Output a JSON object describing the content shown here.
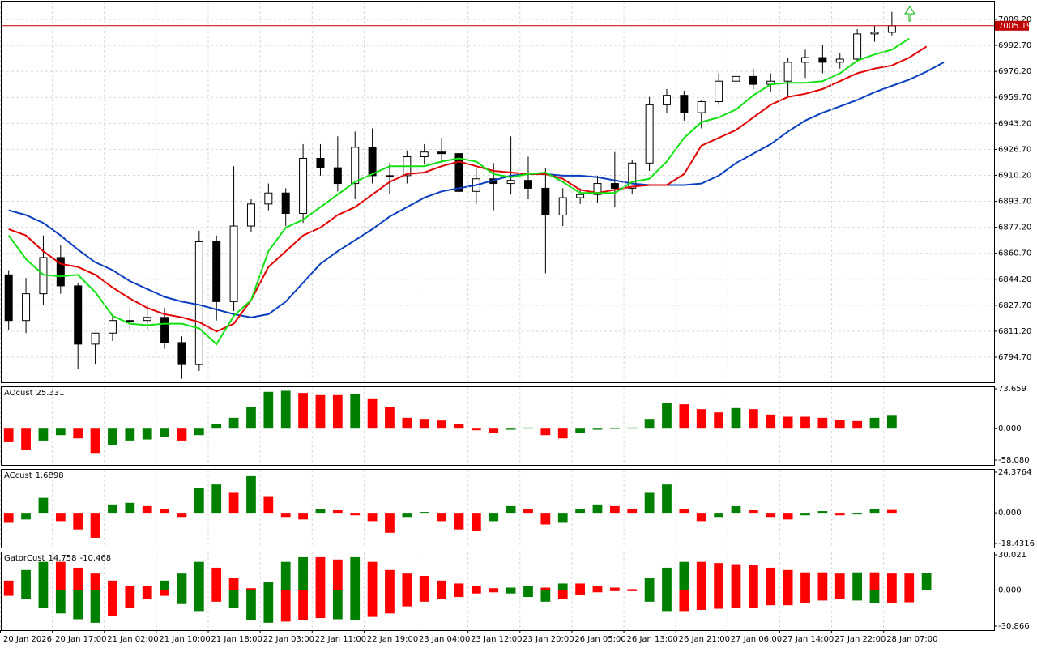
{
  "chart_data": [
    {
      "type": "candlestick",
      "xlim": [
        0,
        57.4
      ],
      "ylim": [
        6778.75,
        7021.55
      ],
      "grid": true,
      "yticks": [
        {
          "value": 7009.2,
          "label": "7009.20"
        },
        {
          "value": 6992.7,
          "label": "6992.70"
        },
        {
          "value": 6976.2,
          "label": "6976.20"
        },
        {
          "value": 6959.7,
          "label": "6959.70"
        },
        {
          "value": 6943.2,
          "label": "6943.20"
        },
        {
          "value": 6926.7,
          "label": "6926.70"
        },
        {
          "value": 6910.2,
          "label": "6910.20"
        },
        {
          "value": 6893.7,
          "label": "6893.70"
        },
        {
          "value": 6877.2,
          "label": "6877.20"
        },
        {
          "value": 6860.7,
          "label": "6860.70"
        },
        {
          "value": 6844.2,
          "label": "6844.20"
        },
        {
          "value": 6827.7,
          "label": "6827.70"
        },
        {
          "value": 6811.2,
          "label": "6811.20"
        },
        {
          "value": 6794.7,
          "label": "6794.70"
        }
      ],
      "up_color": "#ffffff",
      "down_color": "#000000",
      "open": [
        6847,
        6818,
        6835,
        6858,
        6840,
        6803,
        6810,
        6818,
        6818,
        6820,
        6804,
        6790,
        6868,
        6830,
        6878,
        6892,
        6899,
        6886,
        6921,
        6915,
        6905,
        6928,
        6910,
        6910,
        6922,
        6925,
        6924,
        6900,
        6908,
        6905,
        6907,
        6902,
        6885,
        6896,
        6898,
        6905,
        6902,
        6918,
        6955,
        6961,
        6950,
        6957,
        6970,
        6973,
        6968,
        6970,
        6982,
        6985,
        6982,
        6984,
        7000,
        7001
      ],
      "high": [
        6850,
        6845,
        6872,
        6866,
        6842,
        6810,
        6822,
        6826,
        6828,
        6826,
        6808,
        6875,
        6872,
        6916,
        6895,
        6905,
        6902,
        6930,
        6930,
        6935,
        6938,
        6940,
        6918,
        6926,
        6930,
        6934,
        6926,
        6915,
        6918,
        6935,
        6922,
        6915,
        6902,
        6902,
        6910,
        6925,
        6920,
        6960,
        6965,
        6964,
        6958,
        6975,
        6980,
        6978,
        6975,
        6985,
        6990,
        6993,
        6988,
        7003,
        7005,
        7014
      ],
      "low": [
        6812,
        6810,
        6828,
        6835,
        6787,
        6790,
        6805,
        6812,
        6812,
        6800,
        6781,
        6786,
        6818,
        6824,
        6874,
        6888,
        6878,
        6880,
        6910,
        6900,
        6895,
        6905,
        6898,
        6905,
        6917,
        6918,
        6895,
        6892,
        6888,
        6898,
        6895,
        6848,
        6878,
        6892,
        6893,
        6890,
        6898,
        6913,
        6950,
        6945,
        6940,
        6955,
        6966,
        6965,
        6963,
        6960,
        6972,
        6975,
        6978,
        6982,
        6995,
        6999
      ],
      "close": [
        6818,
        6835,
        6858,
        6840,
        6803,
        6810,
        6818,
        6818,
        6820,
        6804,
        6790,
        6868,
        6830,
        6878,
        6892,
        6899,
        6886,
        6921,
        6915,
        6905,
        6928,
        6910,
        6910,
        6922,
        6925,
        6924,
        6900,
        6908,
        6905,
        6907,
        6902,
        6885,
        6896,
        6898,
        6905,
        6902,
        6918,
        6955,
        6961,
        6950,
        6957,
        6970,
        6973,
        6968,
        6970,
        6982,
        6985,
        6982,
        6984,
        7000,
        7001,
        7005.19
      ],
      "lines": [
        {
          "color": "#0a3fbf",
          "values": [
            6888,
            6885,
            6880,
            6872,
            6863,
            6855,
            6850,
            6843,
            6838,
            6833,
            6830,
            6828,
            6825,
            6822,
            6820,
            6822,
            6830,
            6842,
            6854,
            6862,
            6869,
            6876,
            6884,
            6890,
            6896,
            6900,
            6902,
            6904,
            6907,
            6910,
            6911,
            6911,
            6910,
            6910,
            6909,
            6907,
            6905,
            6904,
            6904,
            6904,
            6905,
            6910,
            6918,
            6924,
            6930,
            6938,
            6945,
            6950,
            6954,
            6958,
            6963,
            6967,
            6971,
            6976,
            6982
          ]
        },
        {
          "color": "#e00000",
          "values": [
            6876,
            6872,
            6862,
            6854,
            6852,
            6847,
            6839,
            6832,
            6826,
            6822,
            6820,
            6817,
            6811,
            6816,
            6831,
            6852,
            6862,
            6872,
            6877,
            6885,
            6890,
            6898,
            6906,
            6911,
            6912,
            6916,
            6919,
            6916,
            6913,
            6912,
            6911,
            6911,
            6908,
            6901,
            6899,
            6901,
            6903,
            6904,
            6904,
            6911,
            6929,
            6934,
            6939,
            6947,
            6955,
            6960,
            6962,
            6965,
            6970,
            6975,
            6978,
            6980,
            6985,
            6992,
            null
          ]
        },
        {
          "color": "#10e010",
          "values": [
            6872,
            6857,
            6847,
            6846,
            6847,
            6836,
            6821,
            6816,
            6815,
            6816,
            6816,
            6813,
            6803,
            6821,
            6831,
            6862,
            6877,
            6882,
            6890,
            6898,
            6906,
            6911,
            6916,
            6916,
            6916,
            6919,
            6921,
            6919,
            6911,
            6909,
            6911,
            6912,
            6906,
            6899,
            6899,
            6899,
            6906,
            6908,
            6919,
            6934,
            6944,
            6947,
            6952,
            6961,
            6968,
            6969,
            6969,
            6970,
            6975,
            6983,
            6987,
            6990,
            6997,
            null,
            null
          ]
        }
      ],
      "price_line": {
        "value": 7005.19,
        "color": "#c00000"
      }
    },
    {
      "type": "bar",
      "title": "AOcust",
      "xlim": [
        0,
        57.4
      ],
      "ylim": [
        -67.06,
        79.65
      ],
      "yticks": [
        73.659,
        {
          "value": 0,
          "label": "0.000"
        },
        {
          "value": -58.08,
          "label": "-58.080"
        }
      ],
      "up_color": "#008000",
      "down_color": "#ff0000",
      "values": [
        -25,
        -40,
        -22,
        -12,
        -18,
        -45,
        -30,
        -22,
        -20,
        -15,
        -22,
        -12,
        8,
        20,
        40,
        68,
        70,
        66,
        62,
        62,
        64,
        56,
        40,
        20,
        18,
        15,
        8,
        -3,
        -8,
        -2,
        2,
        -12,
        -18,
        -8,
        -2,
        0,
        2,
        18,
        48,
        45,
        36,
        30,
        38,
        36,
        26,
        22,
        22,
        20,
        16,
        14,
        20,
        25.331
      ]
    },
    {
      "type": "bar",
      "title": "ACcust",
      "xlim": [
        0,
        57.4
      ],
      "ylim": [
        -20.86,
        26.81
      ],
      "yticks": [
        24.3764,
        {
          "value": 0,
          "label": "0.000"
        },
        -18.4316
      ],
      "up_color": "#008000",
      "down_color": "#ff0000",
      "values": [
        -6,
        -4,
        9,
        -5,
        -10,
        -15,
        5,
        6,
        4,
        2.5,
        -2.5,
        15,
        17,
        12,
        22,
        10,
        -2.5,
        -4,
        2.5,
        1.5,
        -1.5,
        -5,
        -12,
        -2.5,
        0.5,
        -5,
        -10,
        -11,
        -5,
        4,
        2.5,
        -7,
        -6,
        2.5,
        5,
        4,
        2.5,
        12,
        17,
        2.5,
        -5,
        -2.5,
        4,
        1.5,
        -2.5,
        -4,
        -1.5,
        1,
        -1.5,
        -1,
        2,
        1.6898
      ]
    },
    {
      "type": "gator",
      "title": "GatorCust",
      "xlim": [
        0,
        57.4
      ],
      "ylim": [
        -34.33,
        33.48
      ],
      "yticks": [
        30.021,
        {
          "value": 0,
          "label": "0.000"
        },
        -30.866
      ],
      "up_color": "#008000",
      "down_color": "#ff0000",
      "upper": [
        8,
        17,
        24,
        24,
        19,
        14,
        8,
        3.5,
        3.5,
        8,
        14,
        24,
        19,
        10,
        1.5,
        7,
        24,
        28,
        28,
        26,
        28,
        24,
        17,
        14,
        12,
        8,
        5.5,
        3.5,
        1.5,
        2,
        3.5,
        2,
        5.5,
        5.5,
        3,
        2,
        0.7,
        10,
        19,
        24,
        24,
        23,
        22,
        21,
        19,
        17,
        15,
        15,
        14,
        15,
        15,
        14,
        14,
        14.758
      ],
      "lower": [
        -5,
        -8,
        -15,
        -20,
        -25,
        -28,
        -22,
        -15,
        -8,
        -5,
        -12,
        -18,
        -10,
        -15,
        -26,
        -28,
        -27,
        -26,
        -24,
        -25,
        -26,
        -23,
        -20,
        -14,
        -10,
        -8,
        -6,
        -3,
        -2,
        -3,
        -6,
        -10,
        -8,
        -4,
        -2,
        -1,
        -1,
        -10,
        -18,
        -18,
        -17,
        -16,
        -15,
        -15,
        -13,
        -13,
        -11,
        -9,
        -8,
        -9,
        -11,
        -11,
        -10.468,
        null
      ],
      "xticks": [
        {
          "value": 0,
          "label": "20 Jan 2026"
        },
        {
          "value": 3,
          "label": "20 Jan 17:00"
        },
        {
          "value": 6,
          "label": "21 Jan 02:00"
        },
        {
          "value": 9,
          "label": "21 Jan 10:00"
        },
        {
          "value": 12,
          "label": "21 Jan 18:00"
        },
        {
          "value": 15,
          "label": "22 Jan 03:00"
        },
        {
          "value": 18,
          "label": "22 Jan 11:00"
        },
        {
          "value": 21,
          "label": "22 Jan 19:00"
        },
        {
          "value": 24,
          "label": "23 Jan 04:00"
        },
        {
          "value": 27,
          "label": "23 Jan 12:00"
        },
        {
          "value": 30,
          "label": "23 Jan 20:00"
        },
        {
          "value": 33,
          "label": "26 Jan 05:00"
        },
        {
          "value": 36,
          "label": "26 Jan 13:00"
        },
        {
          "value": 39,
          "label": "26 Jan 21:00"
        },
        {
          "value": 42,
          "label": "27 Jan 06:00"
        },
        {
          "value": 45,
          "label": "27 Jan 14:00"
        },
        {
          "value": 48,
          "label": "27 Jan 22:00"
        },
        {
          "value": 51,
          "label": "28 Jan 07:00"
        }
      ]
    }
  ]
}
